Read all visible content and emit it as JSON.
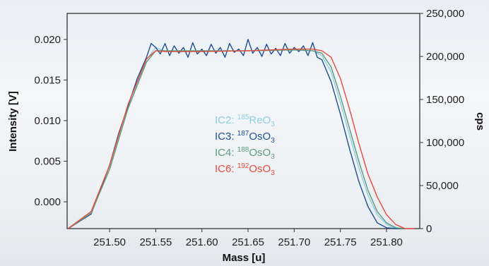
{
  "chart_data": {
    "type": "line",
    "xlabel": "Mass [u]",
    "ylabel_left": "Intensity [V]",
    "ylabel_right": "cps",
    "xlim": [
      251.454,
      251.836
    ],
    "ylim_left": [
      -0.0033,
      0.0232
    ],
    "ylim_right": [
      0,
      250000
    ],
    "x_ticks": [
      {
        "value": 251.5,
        "label": "251.50"
      },
      {
        "value": 251.55,
        "label": "251.55"
      },
      {
        "value": 251.6,
        "label": "251.60"
      },
      {
        "value": 251.65,
        "label": "251.65"
      },
      {
        "value": 251.7,
        "label": "251.70"
      },
      {
        "value": 251.75,
        "label": "251.75"
      },
      {
        "value": 251.8,
        "label": "251.80"
      }
    ],
    "y_left_ticks": [
      {
        "value": 0.0,
        "label": "0.000"
      },
      {
        "value": 0.005,
        "label": "0.005"
      },
      {
        "value": 0.01,
        "label": "0.010"
      },
      {
        "value": 0.015,
        "label": "0.015"
      },
      {
        "value": 0.02,
        "label": "0.020"
      }
    ],
    "y_right_ticks": [
      {
        "value": 0,
        "label": "0"
      },
      {
        "value": 50000,
        "label": "50,000"
      },
      {
        "value": 100000,
        "label": "100,000"
      },
      {
        "value": 150000,
        "label": "150,000"
      },
      {
        "value": 200000,
        "label": "200,000"
      },
      {
        "value": 250000,
        "label": "250,000"
      }
    ],
    "legend": [
      {
        "prefix": "IC2: ",
        "mass": "185",
        "formula": "ReO",
        "sub": "3",
        "color": "#8ecfe0"
      },
      {
        "prefix": "IC3: ",
        "mass": "187",
        "formula": "OsO",
        "sub": "3",
        "color": "#1c4f94"
      },
      {
        "prefix": "IC4: ",
        "mass": "188",
        "formula": "OsO",
        "sub": "3",
        "color": "#5f9a7c"
      },
      {
        "prefix": "IC6: ",
        "mass": "192",
        "formula": "OsO",
        "sub": "3",
        "color": "#e84a3c"
      }
    ],
    "series": [
      {
        "key": "IC2",
        "color": "#8ecfe0",
        "x": [
          251.455,
          251.48,
          251.5,
          251.52,
          251.54,
          251.55,
          251.56,
          251.6,
          251.65,
          251.7,
          251.72,
          251.73,
          251.74,
          251.75,
          251.76,
          251.77,
          251.78,
          251.79,
          251.8,
          251.81,
          251.82
        ],
        "y": [
          -0.0033,
          -0.0012,
          0.004,
          0.0115,
          0.0175,
          0.019,
          0.0185,
          0.0185,
          0.0186,
          0.0188,
          0.0186,
          0.018,
          0.016,
          0.0122,
          0.0082,
          0.0042,
          0.0008,
          -0.0016,
          -0.0028,
          -0.0033,
          -0.0033
        ]
      },
      {
        "key": "IC3",
        "color": "#1c4f94",
        "x": [
          251.455,
          251.48,
          251.49,
          251.5,
          251.51,
          251.52,
          251.53,
          251.54,
          251.545,
          251.55,
          251.555,
          251.56,
          251.565,
          251.57,
          251.575,
          251.58,
          251.585,
          251.59,
          251.595,
          251.6,
          251.605,
          251.61,
          251.615,
          251.62,
          251.625,
          251.63,
          251.635,
          251.64,
          251.645,
          251.65,
          251.655,
          251.66,
          251.665,
          251.67,
          251.675,
          251.68,
          251.685,
          251.69,
          251.695,
          251.7,
          251.705,
          251.71,
          251.715,
          251.72,
          251.725,
          251.73,
          251.74,
          251.75,
          251.76,
          251.77,
          251.78,
          251.79,
          251.8,
          251.81,
          251.82
        ],
        "y": [
          -0.0033,
          -0.0015,
          0.0015,
          0.0045,
          0.0085,
          0.0118,
          0.0152,
          0.0178,
          0.0195,
          0.019,
          0.0182,
          0.0195,
          0.018,
          0.0192,
          0.0183,
          0.019,
          0.0178,
          0.0196,
          0.0182,
          0.0188,
          0.018,
          0.0194,
          0.0183,
          0.019,
          0.0178,
          0.0195,
          0.0184,
          0.0188,
          0.018,
          0.02,
          0.0183,
          0.019,
          0.0179,
          0.0194,
          0.0182,
          0.0189,
          0.018,
          0.0195,
          0.0183,
          0.019,
          0.0185,
          0.0192,
          0.018,
          0.0196,
          0.0178,
          0.0175,
          0.0148,
          0.0108,
          0.0065,
          0.0025,
          -0.0006,
          -0.0026,
          -0.0032,
          -0.0033,
          -0.0033
        ]
      },
      {
        "key": "IC4",
        "color": "#5f9a7c",
        "x": [
          251.455,
          251.48,
          251.5,
          251.52,
          251.54,
          251.55,
          251.56,
          251.6,
          251.65,
          251.7,
          251.72,
          251.73,
          251.74,
          251.75,
          251.76,
          251.77,
          251.78,
          251.79,
          251.8,
          251.81,
          251.82
        ],
        "y": [
          -0.0033,
          -0.0014,
          0.004,
          0.0115,
          0.0172,
          0.0186,
          0.0186,
          0.0186,
          0.0186,
          0.0187,
          0.0186,
          0.0183,
          0.0166,
          0.013,
          0.009,
          0.005,
          0.0014,
          -0.0012,
          -0.0026,
          -0.0032,
          -0.0033
        ]
      },
      {
        "key": "IC6",
        "color": "#e84a3c",
        "x": [
          251.455,
          251.48,
          251.5,
          251.52,
          251.54,
          251.55,
          251.56,
          251.6,
          251.65,
          251.7,
          251.72,
          251.73,
          251.74,
          251.75,
          251.76,
          251.77,
          251.78,
          251.79,
          251.8,
          251.81,
          251.82,
          251.83
        ],
        "y": [
          -0.0033,
          -0.0012,
          0.0045,
          0.012,
          0.0176,
          0.0186,
          0.0185,
          0.0185,
          0.0186,
          0.0188,
          0.0188,
          0.0186,
          0.0178,
          0.0152,
          0.0114,
          0.0072,
          0.0034,
          0.0006,
          -0.0016,
          -0.0028,
          -0.0033,
          -0.0033
        ]
      }
    ]
  }
}
